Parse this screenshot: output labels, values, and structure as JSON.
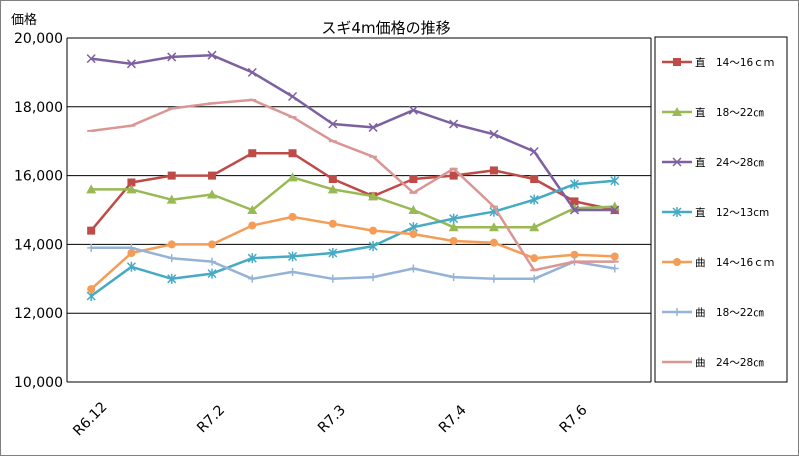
{
  "chart_data": {
    "type": "line",
    "title": "スギ4m価格の推移",
    "ylabel": "価格",
    "xlabel": "",
    "ylim": [
      10000,
      20000
    ],
    "y_ticks": [
      "10,000",
      "12,000",
      "14,000",
      "16,000",
      "18,000",
      "20,000"
    ],
    "y_tick_values": [
      10000,
      12000,
      14000,
      16000,
      18000,
      20000
    ],
    "grid": true,
    "legend_position": "right",
    "x_labels": [
      "R6.12",
      "R7.2",
      "R7.3",
      "R7.4",
      "R7.6"
    ],
    "x_label_positions": [
      0,
      3,
      6,
      9,
      12
    ],
    "x": [
      "1",
      "2",
      "3",
      "4",
      "5",
      "6",
      "7",
      "8",
      "9",
      "10",
      "11",
      "12",
      "13",
      "14"
    ],
    "series": [
      {
        "name": "直　14～16ｃｍ",
        "color": "#be4b48",
        "marker": "square",
        "values": [
          14400,
          15800,
          16000,
          16000,
          16650,
          16650,
          15900,
          15400,
          15900,
          16000,
          16150,
          15900,
          15250,
          15000
        ]
      },
      {
        "name": "直　18～22㎝",
        "color": "#98b954",
        "marker": "triangle",
        "values": [
          15600,
          15600,
          15300,
          15450,
          15000,
          15950,
          15600,
          15400,
          15000,
          14500,
          14500,
          14500,
          15050,
          15100
        ]
      },
      {
        "name": "直　24～28㎝",
        "color": "#7d60a0",
        "marker": "x",
        "values": [
          19400,
          19250,
          19450,
          19500,
          19000,
          18300,
          17500,
          17400,
          17900,
          17500,
          17200,
          16700,
          15000,
          15000
        ]
      },
      {
        "name": "直　12～13cm",
        "color": "#46aac5",
        "marker": "star",
        "values": [
          12500,
          13350,
          13000,
          13150,
          13600,
          13650,
          13750,
          13950,
          14500,
          14750,
          14950,
          15300,
          15750,
          15850
        ]
      },
      {
        "name": "曲　14～16ｃｍ",
        "color": "#f59d56",
        "marker": "circle",
        "values": [
          12700,
          13750,
          14000,
          14000,
          14550,
          14800,
          14600,
          14400,
          14300,
          14100,
          14050,
          13600,
          13700,
          13650
        ]
      },
      {
        "name": "曲　18～22㎝",
        "color": "#95b3d7",
        "marker": "plus",
        "values": [
          13900,
          13900,
          13600,
          13500,
          13000,
          13200,
          13000,
          13050,
          13300,
          13050,
          13000,
          13000,
          13500,
          13300
        ]
      },
      {
        "name": "曲　24～28㎝",
        "color": "#d99694",
        "marker": "dash",
        "values": [
          17300,
          17450,
          17950,
          18100,
          18200,
          17700,
          17000,
          16550,
          15500,
          16200,
          15100,
          13250,
          13500,
          13500
        ]
      }
    ]
  }
}
